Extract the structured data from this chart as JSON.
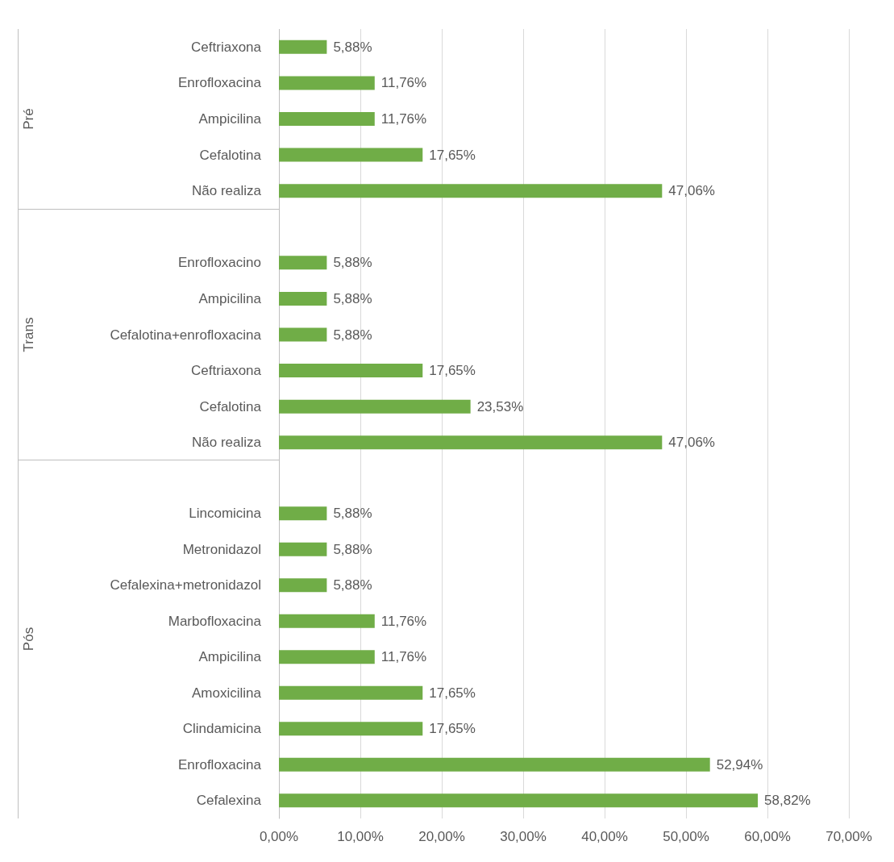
{
  "chart_data": [
    {
      "type": "bar",
      "orientation": "horizontal",
      "ylabel": "Pré",
      "categories": [
        "Ceftriaxona",
        "Enrofloxacina",
        "Ampicilina",
        "Cefalotina",
        "Não realiza"
      ],
      "values": [
        5.88,
        11.76,
        11.76,
        17.65,
        47.06
      ],
      "value_labels": [
        "5,88%",
        "11,76%",
        "11,76%",
        "17,65%",
        "47,06%"
      ],
      "color": "#70ad47",
      "xlim": [
        0,
        70
      ],
      "xticks": [
        {
          "value": 0,
          "label": null
        },
        {
          "value": 10,
          "label": null
        },
        {
          "value": 20,
          "label": null
        },
        {
          "value": 30,
          "label": null
        },
        {
          "value": 40,
          "label": null
        },
        {
          "value": 50,
          "label": null
        },
        {
          "value": 60,
          "label": null
        },
        {
          "value": 70,
          "label": null
        }
      ],
      "grid": "x",
      "tick_labels": "y"
    },
    {
      "type": "bar",
      "orientation": "horizontal",
      "ylabel": "Trans",
      "categories": [
        null,
        "Enrofloxacino",
        "Ampicilina",
        "Cefalotina+enrofloxacina",
        "Ceftriaxona",
        "Cefalotina",
        "Não realiza"
      ],
      "values": [
        null,
        5.88,
        5.88,
        5.88,
        17.65,
        23.53,
        47.06
      ],
      "value_labels": [
        null,
        "5,88%",
        "5,88%",
        "5,88%",
        "17,65%",
        "23,53%",
        "47,06%"
      ],
      "color": "#70ad47",
      "xlim": [
        0,
        70
      ],
      "xticks": [
        {
          "value": 0,
          "label": null
        },
        {
          "value": 10,
          "label": null
        },
        {
          "value": 20,
          "label": null
        },
        {
          "value": 30,
          "label": null
        },
        {
          "value": 40,
          "label": null
        },
        {
          "value": 50,
          "label": null
        },
        {
          "value": 60,
          "label": null
        },
        {
          "value": 70,
          "label": null
        }
      ],
      "grid": "x",
      "tick_labels": "y"
    },
    {
      "type": "bar",
      "orientation": "horizontal",
      "ylabel": "Pós",
      "categories": [
        null,
        "Lincomicina",
        "Metronidazol",
        "Cefalexina+metronidazol",
        "Marbofloxacina",
        "Ampicilina",
        "Amoxicilina",
        "Clindamicina",
        "Enrofloxacina",
        "Cefalexina"
      ],
      "values": [
        null,
        5.88,
        5.88,
        5.88,
        11.76,
        11.76,
        17.65,
        17.65,
        52.94,
        58.82
      ],
      "value_labels": [
        null,
        "5,88%",
        "5,88%",
        "5,88%",
        "11,76%",
        "11,76%",
        "17,65%",
        "17,65%",
        "52,94%",
        "58,82%"
      ],
      "color": "#70ad47",
      "xlim": [
        0,
        70
      ],
      "xticks": [
        {
          "value": 0,
          "label": "0,00%"
        },
        {
          "value": 10,
          "label": "10,00%"
        },
        {
          "value": 20,
          "label": "20,00%"
        },
        {
          "value": 30,
          "label": "30,00%"
        },
        {
          "value": 40,
          "label": "40,00%"
        },
        {
          "value": 50,
          "label": "50,00%"
        },
        {
          "value": 60,
          "label": "60,00%"
        },
        {
          "value": 70,
          "label": "70,00%"
        }
      ],
      "grid": "x"
    }
  ]
}
